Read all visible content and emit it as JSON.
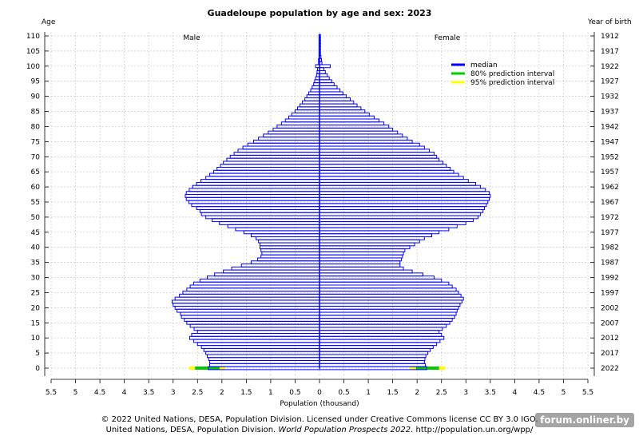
{
  "chart_data": {
    "type": "population-pyramid",
    "title": "Guadeloupe population by age and sex: 2023",
    "left_axis_label": "Age",
    "right_axis_label": "Year of birth",
    "xlabel": "Population (thousand)",
    "male_label": "Male",
    "female_label": "Female",
    "x_tick_labels": [
      "5.5",
      "5",
      "4.5",
      "4",
      "3.5",
      "3",
      "2.5",
      "2",
      "1.5",
      "1",
      "0.5",
      "0",
      "0.5",
      "1",
      "1.5",
      "2",
      "2.5",
      "3",
      "3.5",
      "4",
      "4.5",
      "5",
      "5.5"
    ],
    "x_tick_values": [
      -5.5,
      -5,
      -4.5,
      -4,
      -3.5,
      -3,
      -2.5,
      -2,
      -1.5,
      -1,
      -0.5,
      0,
      0.5,
      1,
      1.5,
      2,
      2.5,
      3,
      3.5,
      4,
      4.5,
      5,
      5.5
    ],
    "xlim": [
      -5.5,
      5.5
    ],
    "ylim": [
      0,
      110
    ],
    "age_ticks": [
      0,
      5,
      10,
      15,
      20,
      25,
      30,
      35,
      40,
      45,
      50,
      55,
      60,
      65,
      70,
      75,
      80,
      85,
      90,
      95,
      100,
      105,
      110
    ],
    "year_ticks": [
      "2022",
      "2017",
      "2012",
      "2007",
      "2002",
      "1997",
      "1992",
      "1987",
      "1982",
      "1977",
      "1972",
      "1967",
      "1962",
      "1957",
      "1952",
      "1947",
      "1942",
      "1937",
      "1932",
      "1927",
      "1922",
      "1917",
      "1912"
    ],
    "grid": true,
    "legend_position": "top-right",
    "legend": [
      {
        "label": "median",
        "color": "#0000ff"
      },
      {
        "label": "80% prediction interval",
        "color": "#00cc00"
      },
      {
        "label": "95% prediction interval",
        "color": "#ffff00"
      }
    ],
    "ages": [
      0,
      1,
      2,
      3,
      4,
      5,
      6,
      7,
      8,
      9,
      10,
      11,
      12,
      13,
      14,
      15,
      16,
      17,
      18,
      19,
      20,
      21,
      22,
      23,
      24,
      25,
      26,
      27,
      28,
      29,
      30,
      31,
      32,
      33,
      34,
      35,
      36,
      37,
      38,
      39,
      40,
      41,
      42,
      43,
      44,
      45,
      46,
      47,
      48,
      49,
      50,
      51,
      52,
      53,
      54,
      55,
      56,
      57,
      58,
      59,
      60,
      61,
      62,
      63,
      64,
      65,
      66,
      67,
      68,
      69,
      70,
      71,
      72,
      73,
      74,
      75,
      76,
      77,
      78,
      79,
      80,
      81,
      82,
      83,
      84,
      85,
      86,
      87,
      88,
      89,
      90,
      91,
      92,
      93,
      94,
      95,
      96,
      97,
      98,
      99,
      100,
      101,
      102,
      103,
      104,
      105,
      106,
      107,
      108,
      109,
      110
    ],
    "male": [
      2.28,
      2.25,
      2.25,
      2.27,
      2.3,
      2.33,
      2.37,
      2.42,
      2.5,
      2.58,
      2.66,
      2.62,
      2.5,
      2.57,
      2.65,
      2.72,
      2.77,
      2.83,
      2.85,
      2.92,
      2.96,
      3.0,
      3.02,
      2.96,
      2.87,
      2.8,
      2.72,
      2.65,
      2.58,
      2.45,
      2.3,
      2.15,
      1.97,
      1.8,
      1.6,
      1.4,
      1.27,
      1.2,
      1.18,
      1.2,
      1.22,
      1.22,
      1.25,
      1.3,
      1.4,
      1.55,
      1.72,
      1.88,
      2.05,
      2.2,
      2.33,
      2.42,
      2.45,
      2.52,
      2.62,
      2.68,
      2.73,
      2.75,
      2.73,
      2.67,
      2.6,
      2.52,
      2.43,
      2.33,
      2.25,
      2.17,
      2.1,
      2.03,
      1.97,
      1.9,
      1.83,
      1.75,
      1.67,
      1.57,
      1.47,
      1.35,
      1.25,
      1.15,
      1.05,
      0.95,
      0.87,
      0.78,
      0.7,
      0.63,
      0.57,
      0.5,
      0.45,
      0.4,
      0.35,
      0.3,
      0.26,
      0.22,
      0.18,
      0.15,
      0.12,
      0.1,
      0.08,
      0.06,
      0.05,
      0.04,
      0.08,
      0.02,
      0.02,
      0.01,
      0.01,
      0.01,
      0.01,
      0.01,
      0.01,
      0.01,
      0.01
    ],
    "female": [
      2.2,
      2.17,
      2.15,
      2.16,
      2.18,
      2.22,
      2.27,
      2.33,
      2.4,
      2.47,
      2.55,
      2.5,
      2.45,
      2.52,
      2.6,
      2.67,
      2.72,
      2.77,
      2.8,
      2.82,
      2.85,
      2.88,
      2.92,
      2.95,
      2.9,
      2.85,
      2.8,
      2.72,
      2.65,
      2.5,
      2.35,
      2.12,
      1.9,
      1.72,
      1.65,
      1.65,
      1.68,
      1.7,
      1.72,
      1.75,
      1.85,
      1.95,
      2.05,
      2.15,
      2.3,
      2.45,
      2.65,
      2.82,
      3.0,
      3.15,
      3.25,
      3.3,
      3.35,
      3.38,
      3.42,
      3.45,
      3.48,
      3.5,
      3.48,
      3.4,
      3.3,
      3.2,
      3.05,
      2.95,
      2.85,
      2.75,
      2.68,
      2.6,
      2.53,
      2.45,
      2.4,
      2.35,
      2.25,
      2.15,
      2.05,
      1.9,
      1.8,
      1.7,
      1.6,
      1.5,
      1.42,
      1.32,
      1.22,
      1.12,
      1.02,
      0.93,
      0.85,
      0.77,
      0.7,
      0.63,
      0.55,
      0.48,
      0.42,
      0.36,
      0.3,
      0.25,
      0.2,
      0.16,
      0.12,
      0.09,
      0.22,
      0.05,
      0.04,
      0.03,
      0.02,
      0.02,
      0.02,
      0.02,
      0.02,
      0.02,
      0.02
    ],
    "prediction_intervals": {
      "age": 0,
      "male_80": [
        2.05,
        2.55
      ],
      "male_95": [
        1.93,
        2.67
      ],
      "female_80": [
        1.98,
        2.45
      ],
      "female_95": [
        1.85,
        2.58
      ]
    }
  },
  "footer": {
    "line1": "© 2022 United Nations, DESA, Population Division. Licensed under Creative Commons license CC BY 3.0 IGO.",
    "line2_prefix": "United Nations, DESA, Population Division. ",
    "line2_italic": "World Population Prospects 2022",
    "line2_suffix": ". http://population.un.org/wpp/"
  },
  "watermark": "forum.onliner.by"
}
